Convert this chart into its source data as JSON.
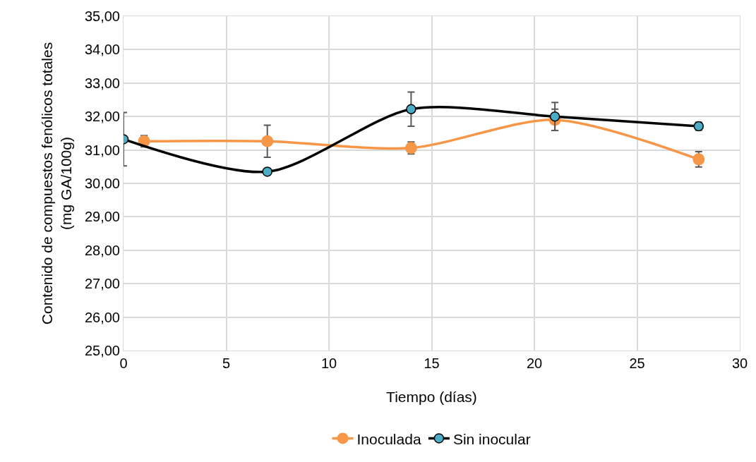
{
  "chart_data": {
    "type": "line",
    "xlabel": "Tiempo (días)",
    "ylabel": "Contenido de compuestos fenólicos totales\n(mg GA/100g)",
    "xlim": [
      0,
      30
    ],
    "xticks": [
      0,
      5,
      10,
      15,
      20,
      25,
      30
    ],
    "ylim": [
      25,
      35
    ],
    "yticks": [
      {
        "value": 25,
        "label": "25,00"
      },
      {
        "value": 26,
        "label": "26,00"
      },
      {
        "value": 27,
        "label": "27,00"
      },
      {
        "value": 28,
        "label": "28,00"
      },
      {
        "value": 29,
        "label": "29,00"
      },
      {
        "value": 30,
        "label": "30,00"
      },
      {
        "value": 31,
        "label": "31,00"
      },
      {
        "value": 32,
        "label": "32,00"
      },
      {
        "value": 33,
        "label": "33,00"
      },
      {
        "value": 34,
        "label": "34,00"
      },
      {
        "value": 35,
        "label": "35,00"
      }
    ],
    "grid": true,
    "legend": "bottom",
    "marker": "circle",
    "line_style": "solid",
    "series": [
      {
        "name": "Inoculada",
        "color": "#f79646",
        "x": [
          1,
          7,
          14,
          21,
          28
        ],
        "values": [
          31.26,
          31.26,
          31.06,
          31.9,
          30.72
        ],
        "errors": [
          0.17,
          0.48,
          0.18,
          0.32,
          0.23
        ]
      },
      {
        "name": "Sin inocular",
        "color": "#000000",
        "x": [
          0,
          7,
          14,
          21,
          28
        ],
        "values": [
          31.32,
          30.35,
          32.22,
          32.0,
          31.71
        ],
        "errors": [
          0.8,
          null,
          0.51,
          0.42,
          0.12
        ]
      }
    ]
  }
}
